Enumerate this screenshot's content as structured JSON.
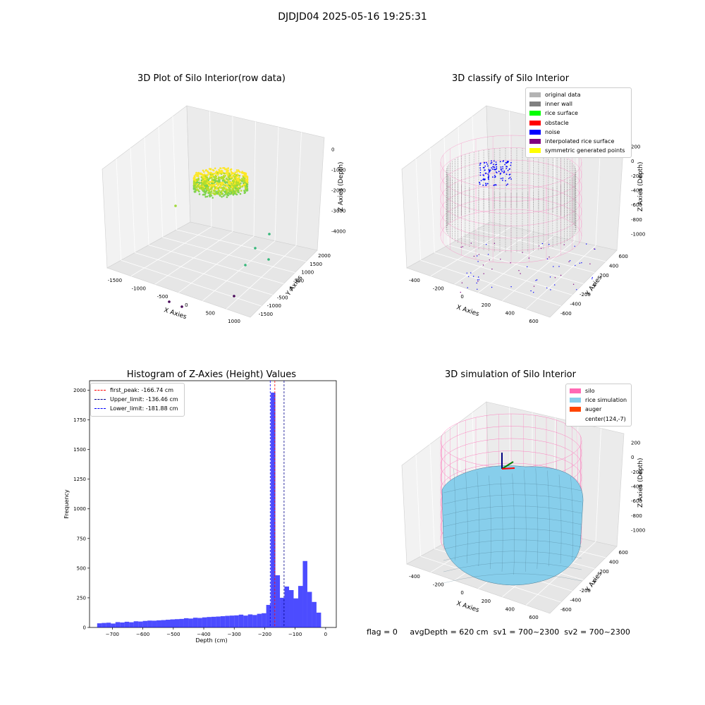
{
  "figure_title": "DJDJD04 2025-05-16 19:25:31",
  "status_line": {
    "flag": "flag = 0",
    "avg_depth": "avgDepth = 620 cm",
    "sv1": "sv1 = 700~2300",
    "sv2": "sv2 = 700~2300"
  },
  "chart_data": [
    {
      "type": "scatter",
      "title": "3D Plot of Silo Interior(row data)",
      "xlabel": "X Axies",
      "ylabel": "Y Axies",
      "zlabel": "Z Axies (Depth)",
      "x_ticks": [
        "-1500",
        "-1000",
        "-500",
        "0",
        "500",
        "1000"
      ],
      "y_ticks": [
        "-1500",
        "-1000",
        "-500",
        "0",
        "500",
        "1000",
        "1500",
        "2000"
      ],
      "z_ticks": [
        "-4000",
        "-3000",
        "-2000",
        "-1000",
        "0"
      ],
      "colormap": "viridis",
      "outlier_points": [
        [
          -1200,
          -800,
          -3900
        ],
        [
          -900,
          -600,
          -3950
        ],
        [
          -200,
          -1200,
          -3900
        ],
        [
          -600,
          500,
          -1200
        ],
        [
          400,
          600,
          -800
        ],
        [
          700,
          200,
          -2300
        ],
        [
          900,
          100,
          -2600
        ],
        [
          800,
          -200,
          -2100
        ],
        [
          300,
          -400,
          -2900
        ]
      ]
    },
    {
      "type": "scatter",
      "title": "3D classify of Silo Interior",
      "xlabel": "X Axies",
      "ylabel": "Y Axies",
      "zlabel": "Z Axies (Depth)",
      "x_ticks": [
        "-400",
        "-200",
        "0",
        "200",
        "400",
        "600"
      ],
      "y_ticks": [
        "-600",
        "-400",
        "-200",
        "0",
        "200",
        "400",
        "600"
      ],
      "z_ticks": [
        "-1000",
        "-800",
        "-600",
        "-400",
        "-200",
        "0",
        "200"
      ],
      "legend": [
        {
          "label": "original data",
          "color": "#b3b3b3"
        },
        {
          "label": "inner wall",
          "color": "#808080"
        },
        {
          "label": "rice surface",
          "color": "#00ff00"
        },
        {
          "label": "obstacle",
          "color": "#ff0000"
        },
        {
          "label": "noise",
          "color": "#0000ff"
        },
        {
          "label": "interpolated rice surface",
          "color": "#800080"
        },
        {
          "label": "symmetric generated points",
          "color": "#ffff00"
        }
      ]
    },
    {
      "type": "bar",
      "title": "Histogram of Z-Axies (Height) Values",
      "xlabel": "Depth (cm)",
      "ylabel": "Frequency",
      "xlim": [
        -775,
        35
      ],
      "ylim": [
        0,
        2080
      ],
      "x_ticks": [
        -700,
        -600,
        -500,
        -400,
        -300,
        -200,
        -100,
        0
      ],
      "y_ticks": [
        0,
        250,
        500,
        750,
        1000,
        1250,
        1500,
        1750,
        2000
      ],
      "bin_width": 15,
      "bin_start": -750,
      "values": [
        35,
        38,
        40,
        33,
        45,
        42,
        48,
        44,
        52,
        50,
        55,
        58,
        57,
        60,
        62,
        65,
        68,
        70,
        72,
        78,
        75,
        82,
        80,
        85,
        88,
        90,
        92,
        95,
        98,
        100,
        102,
        108,
        100,
        110,
        105,
        115,
        120,
        190,
        1980,
        440,
        250,
        345,
        315,
        245,
        350,
        560,
        300,
        215,
        125
      ],
      "bar_color": "#0000ff",
      "lines": [
        {
          "label": "first_peak: -166.74 cm",
          "x": -166.74,
          "color": "#ff0000"
        },
        {
          "label": "Upper_limit: -136.46 cm",
          "x": -136.46,
          "color": "#00008b"
        },
        {
          "label": "Lower_limit: -181.88 cm",
          "x": -181.88,
          "color": "#0000ff"
        }
      ],
      "legend_position": "top-left"
    },
    {
      "type": "area",
      "title": "3D simulation of Silo Interior",
      "xlabel": "X Axies",
      "ylabel": "Y Axies",
      "zlabel": "Z Axies (Depth)",
      "x_ticks": [
        "-400",
        "-200",
        "0",
        "200",
        "400",
        "600"
      ],
      "y_ticks": [
        "-600",
        "-400",
        "-200",
        "0",
        "200",
        "400",
        "600"
      ],
      "z_ticks": [
        "-1000",
        "-800",
        "-600",
        "-400",
        "-200",
        "0",
        "200"
      ],
      "legend": [
        {
          "label": "silo",
          "color": "#ff69b4"
        },
        {
          "label": "rice simulation",
          "color": "#87ceeb"
        },
        {
          "label": "auger",
          "color": "#ff4500"
        },
        {
          "label": "center(124,-7)",
          "color": "#ffffff"
        }
      ]
    }
  ]
}
